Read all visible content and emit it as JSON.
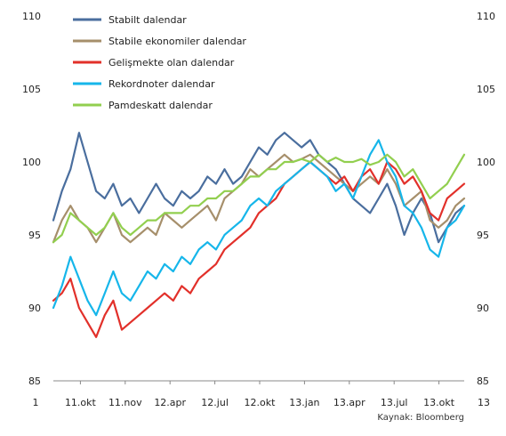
{
  "chart_data": {
    "type": "line",
    "title": "",
    "xlabel": "",
    "ylabel": "",
    "source": "Kaynak: Bloomberg",
    "ylim": [
      85,
      110
    ],
    "y_ticks": [
      85,
      90,
      95,
      100,
      105,
      110
    ],
    "x_ticks": [
      "1",
      "11.okt",
      "11.nov",
      "12.apr",
      "12.jul",
      "12.okt",
      "13.jan",
      "13.apr",
      "13.jul",
      "13.okt",
      "13"
    ],
    "grid": false,
    "legend_position": "top-left",
    "series": [
      {
        "name": "Stabilt dalendar",
        "color": "#4a6e9e",
        "values": [
          96.0,
          98.0,
          99.5,
          102.0,
          100.0,
          98.0,
          97.5,
          98.5,
          97.0,
          97.5,
          96.5,
          97.5,
          98.5,
          97.5,
          97.0,
          98.0,
          97.5,
          98.0,
          99.0,
          98.5,
          99.5,
          98.5,
          99.0,
          100.0,
          101.0,
          100.5,
          101.5,
          102.0,
          101.5,
          101.0,
          101.5,
          100.5,
          100.0,
          99.5,
          98.5,
          97.5,
          97.0,
          96.5,
          97.5,
          98.5,
          97.0,
          95.0,
          96.5,
          97.5,
          96.5,
          94.5,
          95.5,
          96.5,
          97.0
        ]
      },
      {
        "name": "Stabile ekonomiler dalendar",
        "color": "#a68f6b",
        "values": [
          94.5,
          96.0,
          97.0,
          96.0,
          95.5,
          94.5,
          95.5,
          96.5,
          95.0,
          94.5,
          95.0,
          95.5,
          95.0,
          96.5,
          96.0,
          95.5,
          96.0,
          96.5,
          97.0,
          96.0,
          97.5,
          98.0,
          98.5,
          99.5,
          99.0,
          99.5,
          100.0,
          100.5,
          100.0,
          100.2,
          100.5,
          100.0,
          99.5,
          99.0,
          98.5,
          98.0,
          98.5,
          99.0,
          98.5,
          99.5,
          98.5,
          97.0,
          97.5,
          98.0,
          96.0,
          95.5,
          96.0,
          97.0,
          97.5
        ]
      },
      {
        "name": "Gelişmekte olan dalendar",
        "color": "#e2302a",
        "values": [
          90.5,
          91.0,
          92.0,
          90.0,
          89.0,
          88.0,
          89.5,
          90.5,
          88.5,
          89.0,
          89.5,
          90.0,
          90.5,
          91.0,
          90.5,
          91.5,
          91.0,
          92.0,
          92.5,
          93.0,
          94.0,
          94.5,
          95.0,
          95.5,
          96.5,
          97.0,
          97.5,
          98.5,
          99.0,
          99.5,
          100.0,
          99.5,
          99.0,
          98.5,
          99.0,
          98.0,
          99.0,
          99.5,
          98.5,
          100.0,
          99.5,
          98.5,
          99.0,
          98.0,
          96.5,
          96.0,
          97.5,
          98.0,
          98.5
        ]
      },
      {
        "name": "Rekordnoter dalendar",
        "color": "#16b6ea",
        "values": [
          90.0,
          91.5,
          93.5,
          92.0,
          90.5,
          89.5,
          91.0,
          92.5,
          91.0,
          90.5,
          91.5,
          92.5,
          92.0,
          93.0,
          92.5,
          93.5,
          93.0,
          94.0,
          94.5,
          94.0,
          95.0,
          95.5,
          96.0,
          97.0,
          97.5,
          97.0,
          98.0,
          98.5,
          99.0,
          99.5,
          100.0,
          99.5,
          99.0,
          98.0,
          98.5,
          97.5,
          99.0,
          100.5,
          101.5,
          100.0,
          99.0,
          97.0,
          96.5,
          95.5,
          94.0,
          93.5,
          95.5,
          96.0,
          97.0
        ]
      },
      {
        "name": "Pamdeskatt dalendar",
        "color": "#92cf4f",
        "values": [
          94.5,
          95.0,
          96.5,
          96.0,
          95.5,
          95.0,
          95.5,
          96.5,
          95.5,
          95.0,
          95.5,
          96.0,
          96.0,
          96.5,
          96.5,
          96.5,
          97.0,
          97.0,
          97.5,
          97.5,
          98.0,
          98.0,
          98.5,
          99.0,
          99.0,
          99.5,
          99.5,
          100.0,
          100.0,
          100.2,
          100.0,
          100.5,
          100.0,
          100.3,
          100.0,
          100.0,
          100.2,
          99.8,
          100.0,
          100.5,
          100.0,
          99.0,
          99.5,
          98.5,
          97.5,
          98.0,
          98.5,
          99.5,
          100.5
        ]
      }
    ]
  }
}
